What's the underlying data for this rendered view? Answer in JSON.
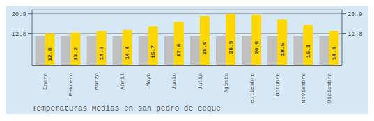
{
  "chart_data": {
    "type": "bar",
    "title": "Temperaturas Medias en san pedro de ceque",
    "categories": [
      "Enero",
      "Febrero",
      "Marzo",
      "Abril",
      "Mayo",
      "Junio",
      "Julio",
      "Agosto",
      "Septiembre",
      "Octubre",
      "Noviembre",
      "Diciembre"
    ],
    "series": [
      {
        "color": "#C0C0C0",
        "values": [
          11.8,
          11.8,
          11.8,
          11.8,
          11.8,
          11.8,
          11.8,
          11.8,
          11.8,
          11.8,
          11.8,
          11.8
        ]
      },
      {
        "color": "#FFD700",
        "values": [
          12.8,
          13.2,
          14.0,
          14.4,
          15.7,
          17.6,
          20.0,
          20.9,
          20.5,
          18.5,
          16.3,
          14.0
        ],
        "data_labels": true,
        "value_labels": [
          "12.8",
          "13.2",
          "14.0",
          "14.4",
          "15.7",
          "17.6",
          "20.0",
          "20.9",
          "20.5",
          "18.5",
          "16.3",
          "14.0"
        ]
      }
    ],
    "ylim": [
      0,
      22.5
    ],
    "yticks": [
      12.8,
      20.9
    ],
    "y2lim": [
      0,
      22.5
    ],
    "y2ticks": [
      12.8,
      20.9
    ],
    "grid": true
  }
}
